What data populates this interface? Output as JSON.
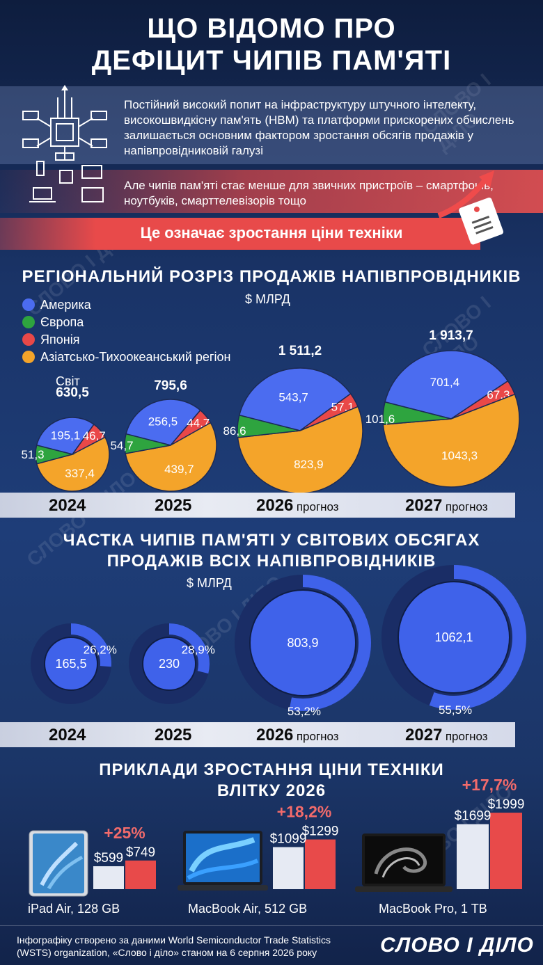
{
  "title_line1": "ЩО ВІДОМО ПРО",
  "title_line2": "ДЕФІЦИТ ЧИПІВ ПАМ'ЯТІ",
  "intro": "Постійний високий попит на інфраструктуру штучного інтелекту, високошвидкісну пам'ять (HBM) та платформи прискорених обчислень залишається основним фактором зростання обсягів продажів у напівпровідниковій галузі",
  "intro2": "Але чипів пам'яті стає менше для звичних пристроїв – смартфонів, ноутбуків, смарттелевізорів тощо",
  "conclusion": "Це означає зростання ціни техніки",
  "section1_title": "РЕГІОНАЛЬНИЙ РОЗРІЗ ПРОДАЖІВ НАПІВПРОВІДНИКІВ",
  "unit": "$ МЛРД",
  "world_label": "Світ",
  "forecast_label": "прогноз",
  "section2_title_line1": "ЧАСТКА ЧИПІВ ПАМ'ЯТІ У СВІТОВИХ ОБСЯГАХ",
  "section2_title_line2": "ПРОДАЖІВ ВСІХ НАПІВПРОВІДНИКІВ",
  "section3_title_line1": "ПРИКЛАДИ ЗРОСТАННЯ ЦІНИ ТЕХНІКИ",
  "section3_title_line2": "ВЛІТКУ 2026",
  "footer_line1": "Інфографіку створено за даними World Semiconductor Trade Statistics",
  "footer_line2": "(WSTS) organization, «Слово і діло» станом на 6 серпня 2026 року",
  "logo_text": "СЛОВО І ДІЛО",
  "watermark": "СЛОВО І ДІЛО",
  "colors": {
    "america": "#4b6cf0",
    "europe": "#2ea43f",
    "japan": "#e94848",
    "apac": "#f4a42a",
    "memory": "#3f62ea",
    "memory_dark": "#1a2d66",
    "accent": "#e84a4a"
  },
  "chart_data": [
    {
      "type": "pie",
      "title": "РЕГІОНАЛЬНИЙ РОЗРІЗ ПРОДАЖІВ НАПІВПРОВІДНИКІВ",
      "unit": "$ МЛРД",
      "legend": [
        "Америка",
        "Європа",
        "Японія",
        "Азіатсько-Тихоокеанський регіон"
      ],
      "legend_placement": "top-left",
      "years": [
        {
          "year": "2024",
          "forecast": false,
          "total": "630,5",
          "america": 195.1,
          "europe": 51.3,
          "japan": 46.7,
          "apac": 337.4,
          "america_label": "195,1",
          "europe_label": "51,3",
          "japan_label": "46,7",
          "apac_label": "337,4"
        },
        {
          "year": "2025",
          "forecast": false,
          "total": "795,6",
          "america": 256.5,
          "europe": 54.7,
          "japan": 44.7,
          "apac": 439.7,
          "america_label": "256,5",
          "europe_label": "54,7",
          "japan_label": "44,7",
          "apac_label": "439,7"
        },
        {
          "year": "2026",
          "forecast": true,
          "total": "1 511,2",
          "america": 543.7,
          "europe": 86.6,
          "japan": 57.1,
          "apac": 823.9,
          "america_label": "543,7",
          "europe_label": "86,6",
          "japan_label": "57,1",
          "apac_label": "823,9"
        },
        {
          "year": "2027",
          "forecast": true,
          "total": "1 913,7",
          "america": 701.4,
          "europe": 101.6,
          "japan": 67.3,
          "apac": 1043.3,
          "america_label": "701,4",
          "europe_label": "101,6",
          "japan_label": "67,3",
          "apac_label": "1043,3"
        }
      ]
    },
    {
      "type": "pie",
      "title": "ЧАСТКА ЧИПІВ ПАМ'ЯТІ У СВІТОВИХ ОБСЯГАХ ПРОДАЖІВ ВСІХ НАПІВПРОВІДНИКІВ",
      "unit": "$ МЛРД",
      "years": [
        {
          "year": "2024",
          "forecast": false,
          "memory": 165.5,
          "memory_label": "165,5",
          "share": 26.2,
          "share_label": "26,2"
        },
        {
          "year": "2025",
          "forecast": false,
          "memory": 230,
          "memory_label": "230",
          "share": 28.9,
          "share_label": "28,9"
        },
        {
          "year": "2026",
          "forecast": true,
          "memory": 803.9,
          "memory_label": "803,9",
          "share": 53.2,
          "share_label": "53,2"
        },
        {
          "year": "2027",
          "forecast": true,
          "memory": 1062.1,
          "memory_label": "1062,1",
          "share": 55.5,
          "share_label": "55,5"
        }
      ]
    },
    {
      "type": "bar",
      "title": "ПРИКЛАДИ ЗРОСТАННЯ ЦІНИ ТЕХНІКИ ВЛІТКУ 2026",
      "products": [
        {
          "name": "iPad Air, 128 GB",
          "old": 599,
          "new": 749,
          "old_label": "$599",
          "new_label": "$749",
          "change": "+25%"
        },
        {
          "name": "MacBook Air, 512 GB",
          "old": 1099,
          "new": 1299,
          "old_label": "$1099",
          "new_label": "$1299",
          "change": "+18,2%"
        },
        {
          "name": "MacBook Pro, 1 TB",
          "old": 1699,
          "new": 1999,
          "old_label": "$1699",
          "new_label": "$1999",
          "change": "+17,7%"
        }
      ]
    }
  ]
}
